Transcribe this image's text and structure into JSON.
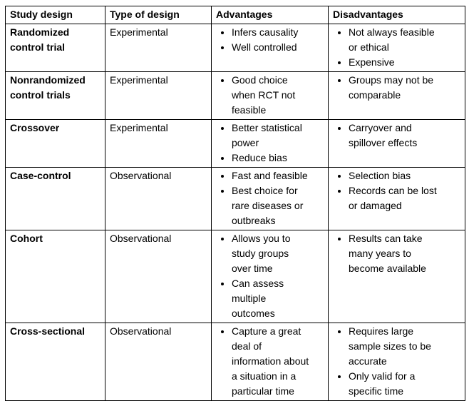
{
  "colors": {
    "background": "#ffffff",
    "text": "#000000",
    "border": "#000000"
  },
  "table": {
    "headers": [
      "Study design",
      "Type of design",
      "Advantages",
      "Disadvantages"
    ],
    "rows": [
      {
        "study_design": "Randomized control trial",
        "type": "Experimental",
        "advantages": [
          "Infers causality",
          "Well controlled"
        ],
        "disadvantages": [
          "Not always feasible or ethical",
          "Expensive"
        ]
      },
      {
        "study_design": "Nonrandomized control trials",
        "type": "Experimental",
        "advantages": [
          "Good choice when RCT not feasible"
        ],
        "disadvantages": [
          "Groups may not be comparable"
        ]
      },
      {
        "study_design": "Crossover",
        "type": "Experimental",
        "advantages": [
          "Better statistical power",
          "Reduce bias"
        ],
        "disadvantages": [
          "Carryover and spillover effects"
        ]
      },
      {
        "study_design": "Case-control",
        "type": "Observational",
        "advantages": [
          "Fast and feasible",
          "Best choice for rare diseases or outbreaks"
        ],
        "disadvantages": [
          "Selection bias",
          "Records can be lost or damaged"
        ]
      },
      {
        "study_design": "Cohort",
        "type": "Observational",
        "advantages": [
          "Allows you to study groups over time",
          "Can assess multiple outcomes"
        ],
        "disadvantages": [
          "Results can take many years to become available"
        ]
      },
      {
        "study_design": "Cross-sectional",
        "type": "Observational",
        "advantages": [
          "Capture a great deal of information about a situation in a particular time"
        ],
        "disadvantages": [
          "Requires large sample sizes to be accurate",
          "Only valid for a specific time"
        ]
      }
    ]
  }
}
